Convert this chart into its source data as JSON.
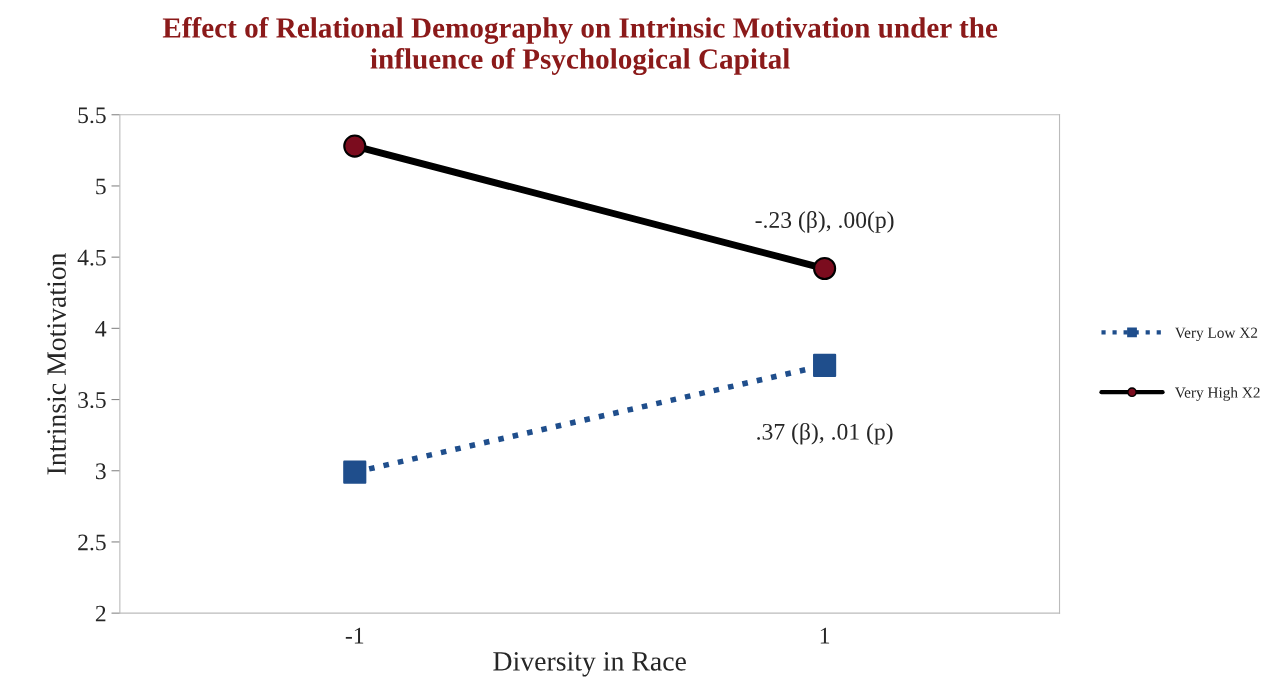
{
  "chart_data": {
    "type": "line",
    "title": "Effect of Relational Demography on Intrinsic Motivation under the\ninfluence of Psychological Capital",
    "xlabel": "Diversity in Race",
    "ylabel": "Intrinsic Motivation",
    "categories": [
      "-1",
      "1"
    ],
    "series": [
      {
        "name": "Very Low X2",
        "color": "#1f4e8c",
        "values": [
          2.99,
          3.74
        ],
        "marker": "square",
        "line_style": "dotted"
      },
      {
        "name": "Very High X2",
        "color": "#000000",
        "colors": [
          "#7b0c1e",
          "#7b0c1e"
        ],
        "values": [
          5.28,
          4.42
        ],
        "marker": "circle",
        "line_style": "solid"
      }
    ],
    "ylim": [
      2,
      5.5
    ],
    "yticks": [
      2,
      2.5,
      3,
      3.5,
      4,
      4.5,
      5,
      5.5
    ],
    "annotations": [
      "-.23 (β), .00(p)",
      ".37 (β), .01 (p)"
    ],
    "legend": "right",
    "grid": false
  }
}
